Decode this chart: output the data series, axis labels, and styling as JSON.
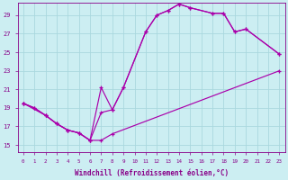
{
  "bg_color": "#cceef2",
  "grid_color": "#aad8de",
  "line_color": "#aa00aa",
  "xlabel": "Windchill (Refroidissement éolien,°C)",
  "xlabel_color": "#880088",
  "tick_color": "#880088",
  "ylabel_ticks": [
    15,
    17,
    19,
    21,
    23,
    25,
    27,
    29
  ],
  "xlim": [
    -0.5,
    23.5
  ],
  "ylim": [
    14.2,
    30.3
  ],
  "line1_x": [
    0,
    1,
    2,
    3,
    4,
    5,
    6,
    7,
    8,
    23
  ],
  "line1_y": [
    19.5,
    19.0,
    18.2,
    17.3,
    16.6,
    16.3,
    15.5,
    15.5,
    16.2,
    23.0
  ],
  "line2_x": [
    0,
    1,
    2,
    3,
    4,
    5,
    6,
    7,
    8,
    9,
    11,
    12,
    13,
    14,
    15,
    17,
    18,
    19,
    20,
    23
  ],
  "line2_y": [
    19.5,
    19.0,
    18.2,
    17.3,
    16.6,
    16.3,
    15.5,
    18.5,
    18.8,
    21.2,
    27.2,
    29.0,
    29.5,
    30.2,
    29.8,
    29.2,
    29.2,
    27.2,
    27.5,
    24.8
  ],
  "line3_x": [
    0,
    2,
    3,
    4,
    5,
    6,
    7,
    8,
    9,
    11,
    12,
    13,
    14,
    15,
    17,
    18,
    19,
    20,
    23
  ],
  "line3_y": [
    19.5,
    18.2,
    17.3,
    16.6,
    16.3,
    15.5,
    21.2,
    18.8,
    21.2,
    27.2,
    29.0,
    29.5,
    30.2,
    29.8,
    29.2,
    29.2,
    27.2,
    27.5,
    24.8
  ],
  "xtick_labels": [
    "0",
    "1",
    "2",
    "3",
    "4",
    "5",
    "6",
    "7",
    "8",
    "9",
    "10",
    "11",
    "12",
    "13",
    "14",
    "15",
    "16",
    "17",
    "18",
    "19",
    "20",
    "21",
    "22",
    "23"
  ]
}
